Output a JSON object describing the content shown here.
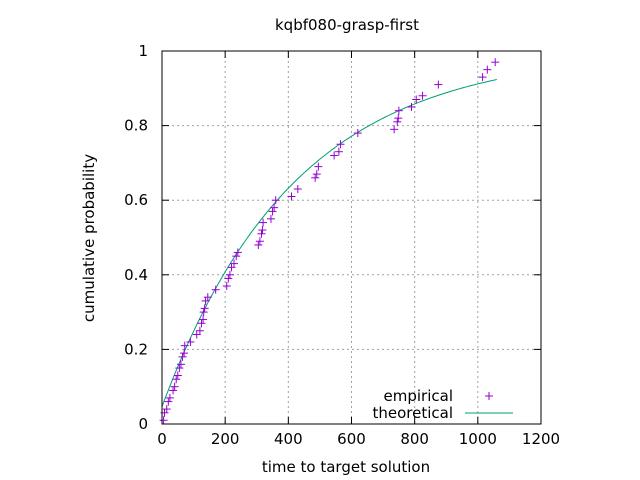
{
  "chart_data": {
    "type": "scatter",
    "title": "kqbf080-grasp-first",
    "xlabel": "time to target solution",
    "ylabel": "cumulative probability",
    "xlim": [
      0,
      1200
    ],
    "ylim": [
      0,
      1
    ],
    "xticks": [
      0,
      200,
      400,
      600,
      800,
      1000,
      1200
    ],
    "yticks": [
      0,
      0.2,
      0.4,
      0.6,
      0.8,
      1
    ],
    "xtick_labels": [
      "0",
      "200",
      "400",
      "600",
      "800",
      "1000",
      "1200"
    ],
    "ytick_labels": [
      "0",
      "0.2",
      "0.4",
      "0.6",
      "0.8",
      "1"
    ],
    "grid": true,
    "legend_position": "bottom-right",
    "series": [
      {
        "name": "empirical",
        "kind": "points",
        "marker": "plus",
        "color": "#9400d3",
        "points": [
          [
            5,
            0.01
          ],
          [
            8,
            0.03
          ],
          [
            15,
            0.04
          ],
          [
            20,
            0.06
          ],
          [
            25,
            0.07
          ],
          [
            35,
            0.09
          ],
          [
            40,
            0.1
          ],
          [
            45,
            0.12
          ],
          [
            50,
            0.13
          ],
          [
            55,
            0.15
          ],
          [
            60,
            0.16
          ],
          [
            65,
            0.18
          ],
          [
            70,
            0.19
          ],
          [
            72,
            0.21
          ],
          [
            90,
            0.22
          ],
          [
            110,
            0.24
          ],
          [
            120,
            0.25
          ],
          [
            125,
            0.27
          ],
          [
            130,
            0.28
          ],
          [
            132,
            0.3
          ],
          [
            135,
            0.31
          ],
          [
            138,
            0.33
          ],
          [
            145,
            0.34
          ],
          [
            170,
            0.36
          ],
          [
            205,
            0.37
          ],
          [
            210,
            0.39
          ],
          [
            215,
            0.4
          ],
          [
            220,
            0.42
          ],
          [
            228,
            0.43
          ],
          [
            235,
            0.45
          ],
          [
            240,
            0.46
          ],
          [
            305,
            0.48
          ],
          [
            310,
            0.49
          ],
          [
            315,
            0.51
          ],
          [
            318,
            0.52
          ],
          [
            320,
            0.54
          ],
          [
            345,
            0.55
          ],
          [
            350,
            0.57
          ],
          [
            355,
            0.58
          ],
          [
            360,
            0.6
          ],
          [
            410,
            0.61
          ],
          [
            430,
            0.63
          ],
          [
            485,
            0.66
          ],
          [
            490,
            0.67
          ],
          [
            495,
            0.69
          ],
          [
            545,
            0.72
          ],
          [
            560,
            0.73
          ],
          [
            565,
            0.75
          ],
          [
            620,
            0.78
          ],
          [
            735,
            0.79
          ],
          [
            745,
            0.81
          ],
          [
            748,
            0.82
          ],
          [
            750,
            0.84
          ],
          [
            790,
            0.85
          ],
          [
            805,
            0.87
          ],
          [
            825,
            0.88
          ],
          [
            875,
            0.91
          ],
          [
            1015,
            0.93
          ],
          [
            1030,
            0.95
          ],
          [
            1055,
            0.97
          ]
        ]
      },
      {
        "name": "theoretical",
        "kind": "line",
        "color": "#009e73",
        "function": "1 - exp(-(x + 20) / 420)",
        "x_range": [
          0,
          1060
        ]
      }
    ]
  }
}
